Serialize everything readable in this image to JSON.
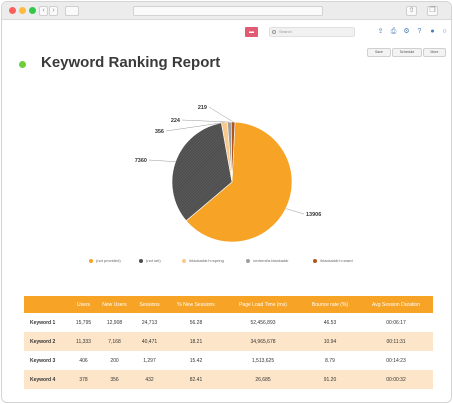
{
  "toolbar": {
    "search_placeholder": "Search"
  },
  "page": {
    "title": "Keyword Ranking Report",
    "actions": [
      "Save",
      "Schedule",
      "More"
    ]
  },
  "chart_data": {
    "type": "pie",
    "categories": [
      "(not provided)",
      "(not set)",
      "/blackaddr.h=spring",
      "/ordrent/a.blackaddr",
      "/blackaddr.h=ward"
    ],
    "values": [
      13906,
      7360,
      356,
      224,
      219
    ],
    "colors": [
      "#f7a325",
      "#4d4d4d",
      "#f9c989",
      "#9e9e9e",
      "#b3551b"
    ],
    "legend_position": "bottom",
    "data_labels": true
  },
  "table": {
    "headers": [
      "",
      "Users",
      "New Users",
      "Sessions",
      "% New Sessions",
      "Page Load Time (ms)",
      "Bounce rate (%)",
      "Avg Session Duration"
    ],
    "rows": [
      [
        "Keyword 1",
        "15,795",
        "12,908",
        "24,713",
        "56.28",
        "52,456,893",
        "46.53",
        "00:06:17"
      ],
      [
        "Keyword 2",
        "11,333",
        "7,168",
        "40,471",
        "18.21",
        "34,965,678",
        "10.94",
        "00:11:31"
      ],
      [
        "Keyword 3",
        "406",
        "200",
        "1,297",
        "15.42",
        "1,513,625",
        "8.79",
        "00:14:23"
      ],
      [
        "Keyword 4",
        "378",
        "356",
        "432",
        "82.41",
        "26,685",
        "91.20",
        "00:00:32"
      ]
    ]
  }
}
